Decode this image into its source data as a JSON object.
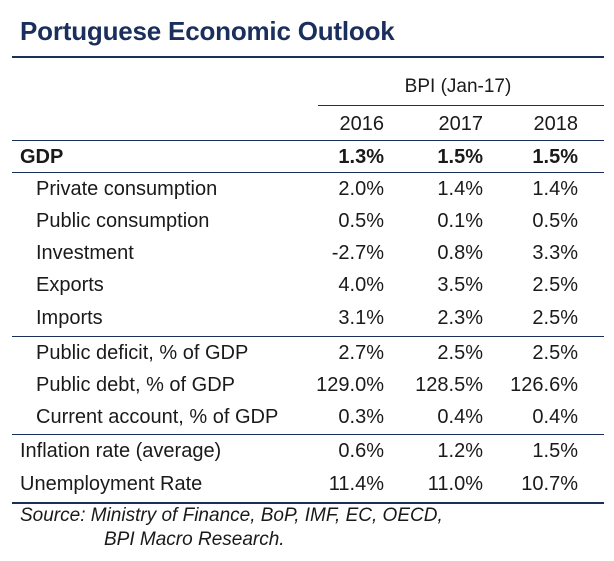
{
  "title": "Portuguese Economic Outlook",
  "column_group": "BPI (Jan-17)",
  "years": [
    "2016",
    "2017",
    "2018"
  ],
  "rows": [
    {
      "label": "GDP",
      "values": [
        "1.3%",
        "1.5%",
        "1.5%"
      ]
    },
    {
      "label": "Private consumption",
      "values": [
        "2.0%",
        "1.4%",
        "1.4%"
      ]
    },
    {
      "label": "Public consumption",
      "values": [
        "0.5%",
        "0.1%",
        "0.5%"
      ]
    },
    {
      "label": "Investment",
      "values": [
        "-2.7%",
        "0.8%",
        "3.3%"
      ]
    },
    {
      "label": "Exports",
      "values": [
        "4.0%",
        "3.5%",
        "2.5%"
      ]
    },
    {
      "label": "Imports",
      "values": [
        "3.1%",
        "2.3%",
        "2.5%"
      ]
    },
    {
      "label": "Public deficit, % of GDP",
      "values": [
        "2.7%",
        "2.5%",
        "2.5%"
      ]
    },
    {
      "label": "Public debt, % of GDP",
      "values": [
        "129.0%",
        "128.5%",
        "126.6%"
      ]
    },
    {
      "label": "Current account, % of GDP",
      "values": [
        "0.3%",
        "0.4%",
        "0.4%"
      ]
    },
    {
      "label": "Inflation rate (average)",
      "values": [
        "0.6%",
        "1.2%",
        "1.5%"
      ]
    },
    {
      "label": "Unemployment Rate",
      "values": [
        "11.4%",
        "11.0%",
        "10.7%"
      ]
    }
  ],
  "source_line1": "Source: Ministry of Finance, BoP, IMF, EC, OECD,",
  "source_line2": "BPI Macro Research."
}
